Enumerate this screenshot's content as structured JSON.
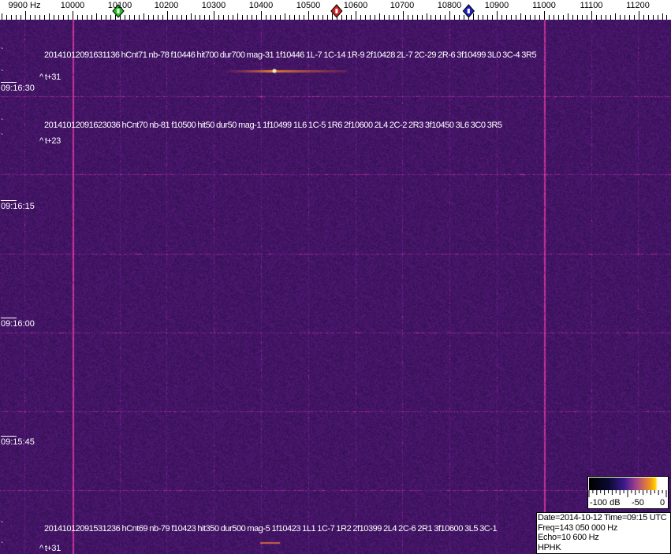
{
  "frequency_axis": {
    "labels": [
      "9900 Hz",
      "10000",
      "10100",
      "10200",
      "10300",
      "10400",
      "10500",
      "10600",
      "10700",
      "10800",
      "10900",
      "11000",
      "11100",
      "11200"
    ],
    "markers": [
      {
        "name": "green-marker",
        "freq": 10097,
        "color": "#20c020"
      },
      {
        "name": "red-marker",
        "freq": 10560,
        "color": "#d02020"
      },
      {
        "name": "blue-marker",
        "freq": 10840,
        "color": "#2020c0"
      }
    ]
  },
  "time_labels": [
    "09:16:30",
    "09:16:15",
    "09:16:00",
    "09:15:45"
  ],
  "detections": [
    {
      "text": "20141012091631136 hCnt71 nb-78 f10446 hit700 dur700 mag-31 1f10446 1L-7 1C-14 1R-9 2f10428 2L-7 2C-29 2R-6 3f10499 3L0 3C-4 3R5",
      "offset": "^ t+31"
    },
    {
      "text": "20141012091623036 hCnt70 nb-81 f10500 hit50 dur50 mag-1 1f10499 1L6 1C-5 1R6 2f10600 2L4 2C-2 2R3 3f10450 3L6 3C0 3R5",
      "offset": "^ t+23"
    },
    {
      "text": "20141012091531236 hCnt69 nb-79 f10423 hit350 dur500 mag-5 1f10423 1L1 1C-7 1R2 2f10399 2L4 2C-6 2R1 3f10600 3L5 3C-1",
      "offset": "^ t+31"
    }
  ],
  "colorbar": {
    "labels": [
      "-100 dB",
      "-50",
      "0"
    ]
  },
  "info": {
    "date_time": "Date=2014-10-12 Time=09:15 UTC",
    "freq": "Freq=143 050 000 Hz",
    "echo": "Echo=10 600 Hz",
    "station": "HPHK"
  },
  "colors": {
    "background": "#241a6e",
    "signal": "#ffb000",
    "line": "#a03080"
  }
}
